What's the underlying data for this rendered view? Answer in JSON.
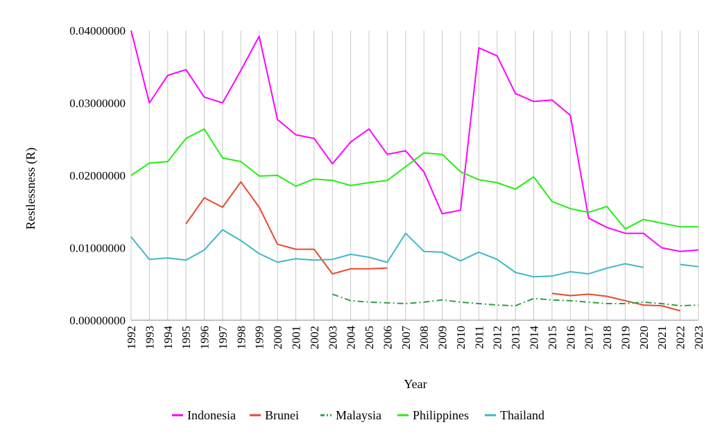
{
  "chart_data": {
    "type": "line",
    "title": "",
    "xlabel": "Year",
    "ylabel": "Restlessness (R)",
    "ylim": [
      0,
      0.04
    ],
    "yticks": [
      "0.00000000",
      "0.01000000",
      "0.02000000",
      "0.03000000",
      "0.04000000"
    ],
    "x": [
      "1992",
      "1993",
      "1994",
      "1995",
      "1996",
      "1997",
      "1998",
      "1999",
      "2000",
      "2001",
      "2002",
      "2003",
      "2004",
      "2005",
      "2006",
      "2007",
      "2008",
      "2009",
      "2010",
      "2011",
      "2012",
      "2013",
      "2014",
      "2015",
      "2016",
      "2017",
      "2018",
      "2019",
      "2020",
      "2021",
      "2022",
      "2023"
    ],
    "grid": "vertical",
    "legend": "bottom",
    "series": [
      {
        "name": "Indonesia",
        "color": "#ff00ff",
        "dash": "solid",
        "values": [
          0.04,
          0.03,
          0.0338,
          0.0346,
          0.0308,
          0.03,
          0.0345,
          0.0392,
          0.0277,
          0.0256,
          0.0251,
          0.0216,
          0.0246,
          0.0264,
          0.0229,
          0.0234,
          0.0205,
          0.0147,
          0.0152,
          0.0376,
          0.0365,
          0.0313,
          0.0302,
          0.0304,
          0.0283,
          0.0141,
          0.0128,
          0.012,
          0.012,
          0.01,
          0.0095,
          0.0097
        ]
      },
      {
        "name": "Brunei",
        "color": "#e8492c",
        "dash": "solid",
        "values": [
          null,
          null,
          null,
          0.0133,
          0.0169,
          0.0156,
          0.0191,
          0.0156,
          0.0105,
          0.0098,
          0.0098,
          0.0064,
          0.0071,
          0.0071,
          0.0072,
          null,
          null,
          null,
          null,
          null,
          null,
          null,
          null,
          0.0037,
          0.0034,
          0.0036,
          0.0033,
          0.0027,
          0.0021,
          0.002,
          0.0013,
          null
        ]
      },
      {
        "name": "Malaysia",
        "color": "#2ea043",
        "dash": "dashdot",
        "values": [
          null,
          null,
          null,
          null,
          null,
          null,
          null,
          null,
          null,
          null,
          null,
          0.0036,
          0.0027,
          0.0025,
          0.0024,
          0.0023,
          0.0025,
          0.0028,
          0.0025,
          0.0023,
          0.0021,
          0.002,
          0.003,
          0.0028,
          0.0027,
          0.0025,
          0.0023,
          0.0023,
          0.0025,
          0.0023,
          0.002,
          0.0021
        ]
      },
      {
        "name": "Philippines",
        "color": "#22ee11",
        "dash": "solid",
        "values": [
          0.02,
          0.0217,
          0.0219,
          0.0251,
          0.0264,
          0.0224,
          0.0219,
          0.0199,
          0.02,
          0.0185,
          0.0195,
          0.0193,
          0.0186,
          0.019,
          0.0193,
          0.0212,
          0.0231,
          0.0229,
          0.0205,
          0.0194,
          0.019,
          0.0181,
          0.0198,
          0.0164,
          0.0154,
          0.0149,
          0.0157,
          0.0126,
          0.0139,
          0.0134,
          0.0129,
          0.0129
        ]
      },
      {
        "name": "Thailand",
        "color": "#3fb8c4",
        "dash": "solid",
        "values": [
          0.0115,
          0.0084,
          0.0086,
          0.0083,
          0.0097,
          0.0125,
          0.011,
          0.0092,
          0.008,
          0.0085,
          0.0083,
          0.0084,
          0.0091,
          0.0087,
          0.008,
          0.012,
          0.0095,
          0.0094,
          0.0082,
          0.0094,
          0.0084,
          0.0066,
          0.006,
          0.0061,
          0.0067,
          0.0064,
          0.0072,
          0.0078,
          0.0073,
          null,
          0.0077,
          0.0074
        ]
      }
    ]
  }
}
